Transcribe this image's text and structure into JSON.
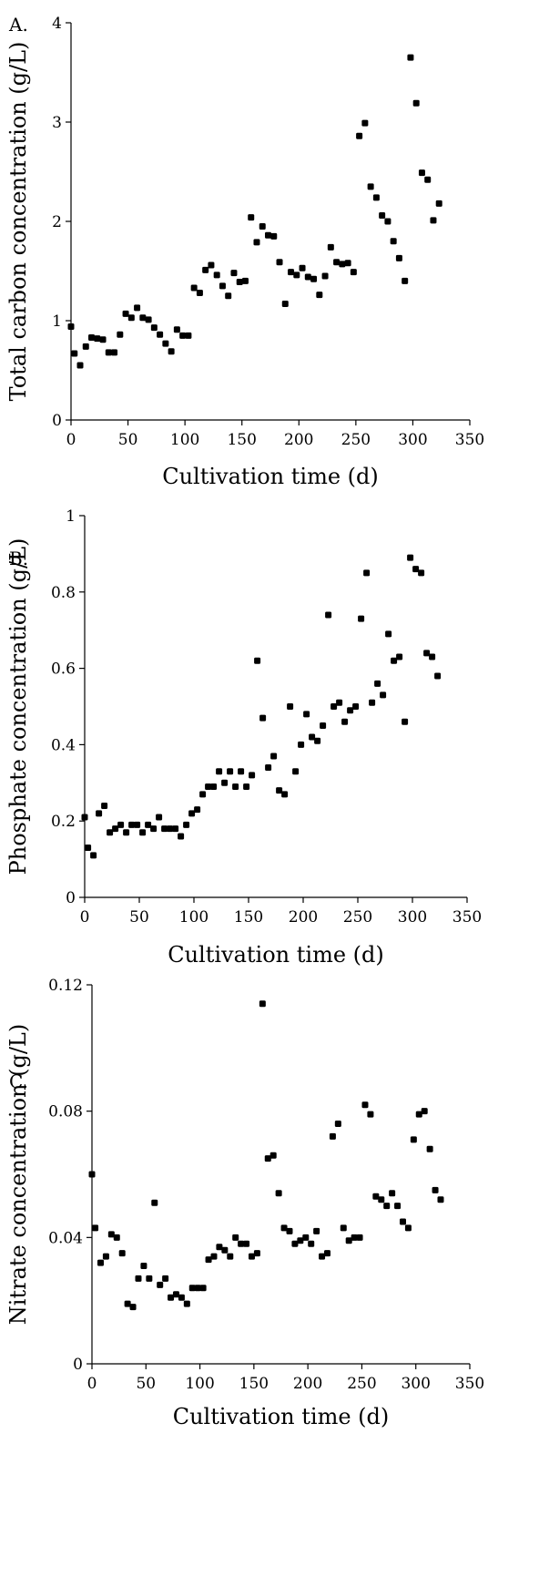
{
  "figure": {
    "panels": [
      "A.",
      "B.",
      "C."
    ]
  },
  "chart_data": [
    {
      "type": "scatter",
      "panel": "A.",
      "xlabel": "Cultivation time (d)",
      "ylabel": "Total carbon concentration (g/L)",
      "xlim": [
        0,
        350
      ],
      "ylim": [
        0,
        4
      ],
      "xticks": [
        0,
        50,
        100,
        150,
        200,
        250,
        300,
        350
      ],
      "yticks": [
        0,
        1,
        2,
        3,
        4
      ],
      "grid": false,
      "series": [
        {
          "x": [
            0,
            3,
            8,
            13,
            18,
            23,
            28,
            33,
            38,
            43,
            48,
            53,
            58,
            63,
            68,
            73,
            78,
            83,
            88,
            93,
            98,
            103,
            108,
            113,
            118,
            123,
            128,
            133,
            138,
            143,
            148,
            153,
            158,
            163,
            168,
            173,
            178,
            183,
            188,
            193,
            198,
            203,
            208,
            213,
            218,
            223,
            228,
            233,
            238,
            243,
            248,
            253,
            258,
            263,
            268,
            273,
            278,
            283,
            288,
            293,
            298,
            303,
            308,
            313,
            318,
            323
          ],
          "y": [
            0.94,
            0.67,
            0.55,
            0.74,
            0.83,
            0.82,
            0.81,
            0.68,
            0.68,
            0.86,
            1.07,
            1.03,
            1.13,
            1.03,
            1.01,
            0.93,
            0.86,
            0.77,
            0.69,
            0.91,
            0.85,
            0.85,
            1.33,
            1.28,
            1.51,
            1.56,
            1.46,
            1.35,
            1.25,
            1.48,
            1.39,
            1.4,
            2.04,
            1.79,
            1.95,
            1.86,
            1.85,
            1.59,
            1.17,
            1.49,
            1.46,
            1.53,
            1.44,
            1.42,
            1.26,
            1.45,
            1.74,
            1.59,
            1.57,
            1.58,
            1.49,
            2.86,
            2.99,
            2.35,
            2.24,
            2.06,
            2.0,
            1.8,
            1.63,
            1.4,
            3.65,
            3.19,
            2.49,
            2.42,
            2.01,
            2.18
          ]
        }
      ]
    },
    {
      "type": "scatter",
      "panel": "B.",
      "xlabel": "Cultivation time (d)",
      "ylabel": "Phosphate concentration (g/L)",
      "xlim": [
        0,
        350
      ],
      "ylim": [
        0,
        1
      ],
      "xticks": [
        0,
        50,
        100,
        150,
        200,
        250,
        300,
        350
      ],
      "yticks": [
        0,
        0.2,
        0.4,
        0.6,
        0.8,
        1
      ],
      "grid": false,
      "series": [
        {
          "x": [
            0,
            3,
            8,
            13,
            18,
            23,
            28,
            33,
            38,
            43,
            48,
            53,
            58,
            63,
            68,
            73,
            78,
            83,
            88,
            93,
            98,
            103,
            108,
            113,
            118,
            123,
            128,
            133,
            138,
            143,
            148,
            153,
            158,
            163,
            168,
            173,
            178,
            183,
            188,
            193,
            198,
            203,
            208,
            213,
            218,
            223,
            228,
            233,
            238,
            243,
            248,
            253,
            258,
            263,
            268,
            273,
            278,
            283,
            288,
            293,
            298,
            303,
            308,
            313,
            318,
            323
          ],
          "y": [
            0.21,
            0.13,
            0.11,
            0.22,
            0.24,
            0.17,
            0.18,
            0.19,
            0.17,
            0.19,
            0.19,
            0.17,
            0.19,
            0.18,
            0.21,
            0.18,
            0.18,
            0.18,
            0.16,
            0.19,
            0.22,
            0.23,
            0.27,
            0.29,
            0.29,
            0.33,
            0.3,
            0.33,
            0.29,
            0.33,
            0.29,
            0.32,
            0.62,
            0.47,
            0.34,
            0.37,
            0.28,
            0.27,
            0.5,
            0.33,
            0.4,
            0.48,
            0.42,
            0.41,
            0.45,
            0.74,
            0.5,
            0.51,
            0.46,
            0.49,
            0.5,
            0.73,
            0.85,
            0.51,
            0.56,
            0.53,
            0.69,
            0.62,
            0.63,
            0.46,
            0.89,
            0.86,
            0.85,
            0.64,
            0.63,
            0.58
          ]
        }
      ]
    },
    {
      "type": "scatter",
      "panel": "C.",
      "xlabel": "Cultivation time (d)",
      "ylabel": "Nitrate concentration (g/L)",
      "xlim": [
        0,
        350
      ],
      "ylim": [
        0,
        0.12
      ],
      "xticks": [
        0,
        50,
        100,
        150,
        200,
        250,
        300,
        350
      ],
      "yticks": [
        0,
        0.04,
        0.08,
        0.12
      ],
      "grid": false,
      "series": [
        {
          "x": [
            0,
            3,
            8,
            13,
            18,
            23,
            28,
            33,
            38,
            43,
            48,
            53,
            58,
            63,
            68,
            73,
            78,
            83,
            88,
            93,
            98,
            103,
            108,
            113,
            118,
            123,
            128,
            133,
            138,
            143,
            148,
            153,
            158,
            163,
            168,
            173,
            178,
            183,
            188,
            193,
            198,
            203,
            208,
            213,
            218,
            223,
            228,
            233,
            238,
            243,
            248,
            253,
            258,
            263,
            268,
            273,
            278,
            283,
            288,
            293,
            298,
            303,
            308,
            313,
            318,
            323
          ],
          "y": [
            0.06,
            0.043,
            0.032,
            0.034,
            0.041,
            0.04,
            0.035,
            0.019,
            0.018,
            0.027,
            0.031,
            0.027,
            0.051,
            0.025,
            0.027,
            0.021,
            0.022,
            0.021,
            0.019,
            0.024,
            0.024,
            0.024,
            0.033,
            0.034,
            0.037,
            0.036,
            0.034,
            0.04,
            0.038,
            0.038,
            0.034,
            0.035,
            0.114,
            0.065,
            0.066,
            0.054,
            0.043,
            0.042,
            0.038,
            0.039,
            0.04,
            0.038,
            0.042,
            0.034,
            0.035,
            0.072,
            0.076,
            0.043,
            0.039,
            0.04,
            0.04,
            0.082,
            0.079,
            0.053,
            0.052,
            0.05,
            0.054,
            0.05,
            0.045,
            0.043,
            0.071,
            0.079,
            0.08,
            0.068,
            0.055,
            0.052
          ]
        }
      ]
    }
  ]
}
